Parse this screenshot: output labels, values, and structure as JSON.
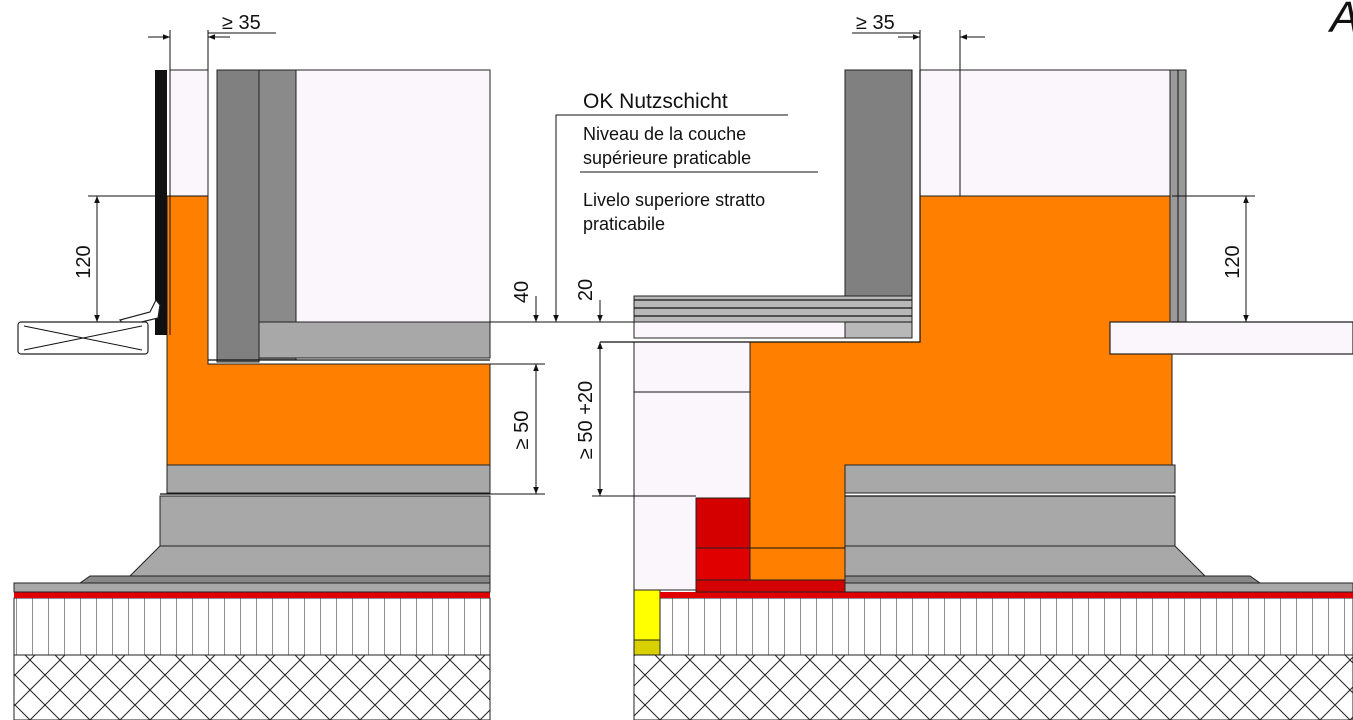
{
  "colors": {
    "insulation": "#ff7f00",
    "concrete_dark": "#808080",
    "concrete_light": "#a8a8a8",
    "membrane_red": "#e00000",
    "brick_red": "#d40000",
    "yellow": "#ffff00",
    "pale_wall": "#fbf6fb"
  },
  "dimensions": {
    "left_top_gap": "≥ 35",
    "right_top_gap": "≥ 35",
    "left_height": "120",
    "right_height": "120",
    "left_offset": "40",
    "right_offset": "20",
    "left_depth": "≥ 50",
    "right_depth": "≥ 50 +20"
  },
  "annotation": {
    "de": "OK Nutzschicht",
    "fr_line1": "Niveau de la couche",
    "fr_line2": "supérieure praticable",
    "it_line1": "Livelo superiore stratto",
    "it_line2": "praticabile"
  },
  "corner_letter": "A"
}
